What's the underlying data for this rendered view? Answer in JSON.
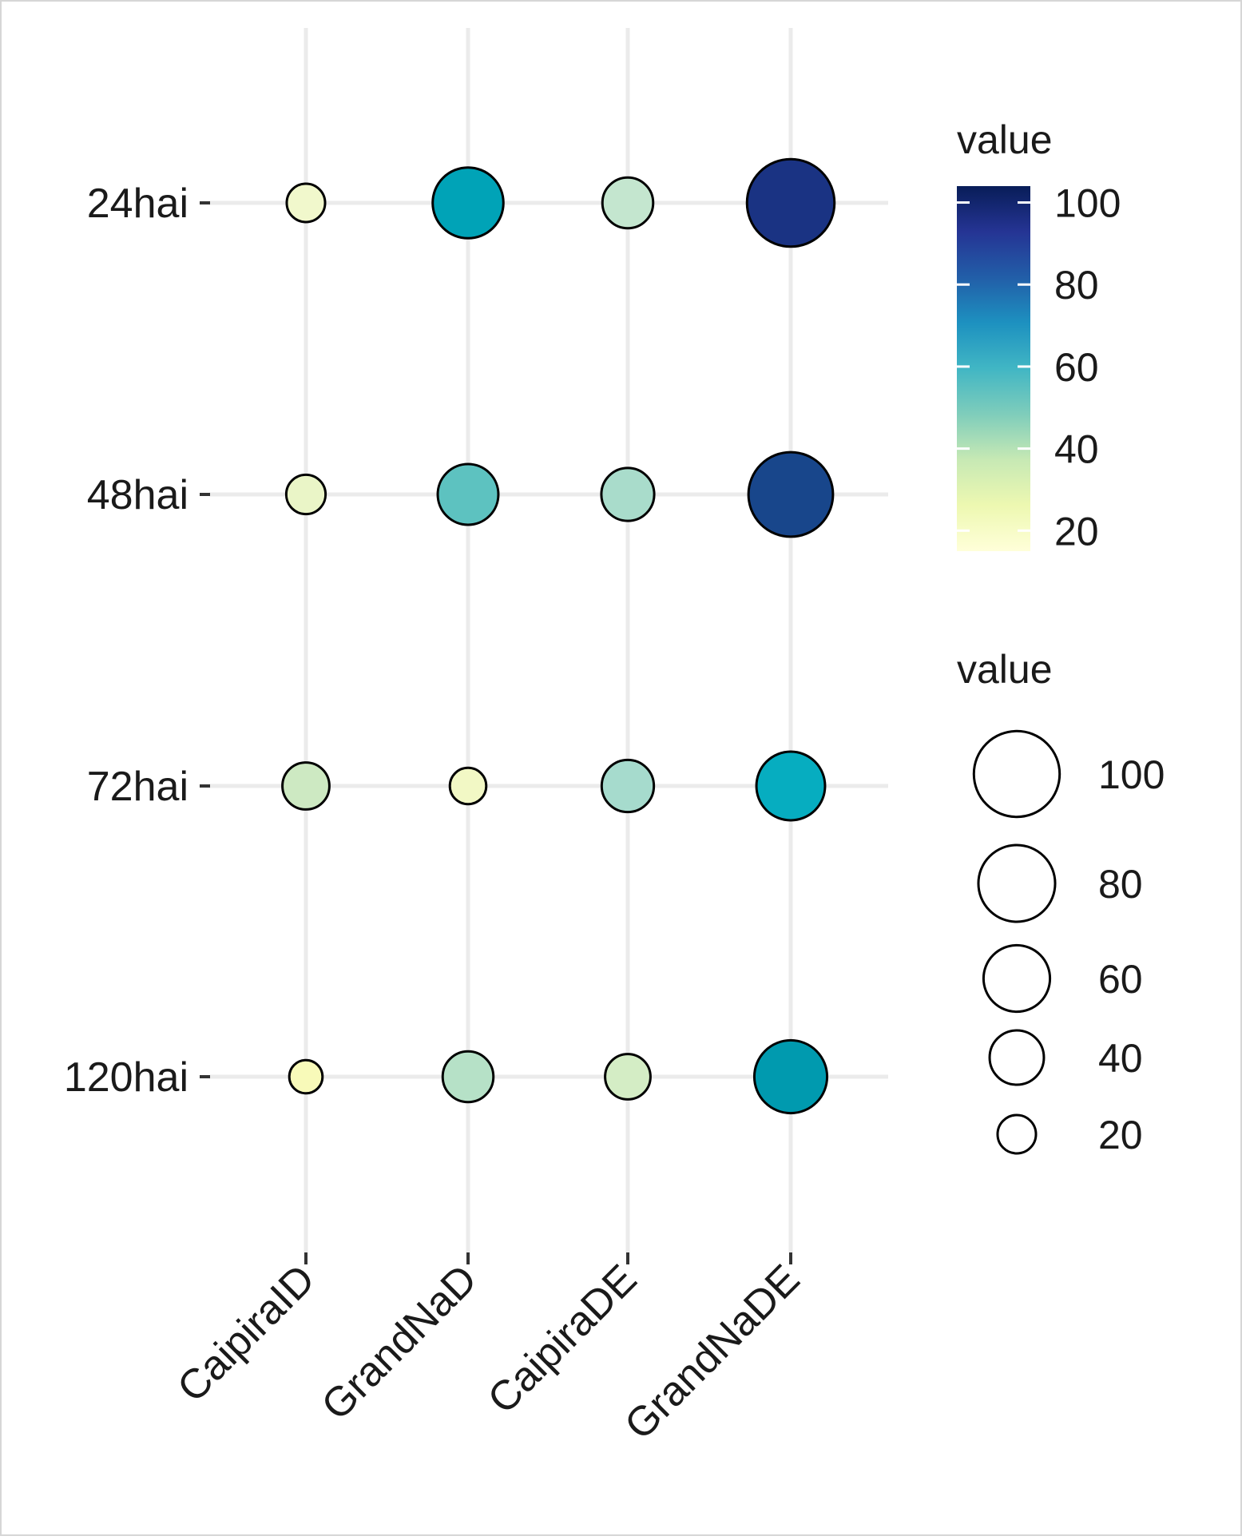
{
  "chart_data": {
    "type": "scatter",
    "subtype": "bubble-matrix",
    "categories_x": [
      "CaipiraID",
      "GrandNaD",
      "CaipiraDE",
      "GrandNaDE"
    ],
    "categories_y": [
      "24hai",
      "48hai",
      "72hai",
      "120hai"
    ],
    "points": [
      {
        "x": "CaipiraID",
        "y": "24hai",
        "value": 20
      },
      {
        "x": "GrandNaD",
        "y": "24hai",
        "value": 68
      },
      {
        "x": "CaipiraDE",
        "y": "24hai",
        "value": 35
      },
      {
        "x": "GrandNaDE",
        "y": "24hai",
        "value": 104
      },
      {
        "x": "CaipiraID",
        "y": "48hai",
        "value": 21
      },
      {
        "x": "GrandNaD",
        "y": "48hai",
        "value": 50
      },
      {
        "x": "CaipiraDE",
        "y": "48hai",
        "value": 38
      },
      {
        "x": "GrandNaDE",
        "y": "48hai",
        "value": 97
      },
      {
        "x": "CaipiraID",
        "y": "72hai",
        "value": 30
      },
      {
        "x": "GrandNaD",
        "y": "72hai",
        "value": 18
      },
      {
        "x": "CaipiraDE",
        "y": "72hai",
        "value": 37
      },
      {
        "x": "GrandNaDE",
        "y": "72hai",
        "value": 64
      },
      {
        "x": "CaipiraID",
        "y": "120hai",
        "value": 15
      },
      {
        "x": "GrandNaD",
        "y": "120hai",
        "value": 35
      },
      {
        "x": "CaipiraDE",
        "y": "120hai",
        "value": 28
      },
      {
        "x": "GrandNaDE",
        "y": "120hai",
        "value": 72
      }
    ],
    "color_scale": {
      "title": "value",
      "domain": [
        15,
        104
      ],
      "ticks": [
        20,
        40,
        60,
        80,
        100
      ],
      "palette": [
        "#ffffd9",
        "#edf8b1",
        "#c7e9b4",
        "#7fcdbb",
        "#41b6c4",
        "#1d91c0",
        "#225ea8",
        "#253494",
        "#081d58"
      ]
    },
    "size_scale": {
      "title": "value",
      "domain": [
        15,
        104
      ],
      "legend_values": [
        100,
        80,
        60,
        40,
        20
      ]
    },
    "grid": true,
    "xlabel": "",
    "ylabel": "",
    "legend_position": "right",
    "point_fill_colors": {
      "24hai": [
        "#f1f8cc",
        "#00a3b7",
        "#c4e6cf",
        "#1a3383"
      ],
      "48hai": [
        "#eaf5c7",
        "#5dc2c0",
        "#a9dccb",
        "#18468b"
      ],
      "72hai": [
        "#cde9c2",
        "#f2f8c5",
        "#a6dbcd",
        "#06adc0"
      ],
      "120hai": [
        "#f8fab9",
        "#b6e1c7",
        "#d4edc5",
        "#009aaf"
      ]
    },
    "colors": {
      "grid": "#ebebeb",
      "outline": "#000000",
      "text": "#1a1a1a"
    }
  }
}
